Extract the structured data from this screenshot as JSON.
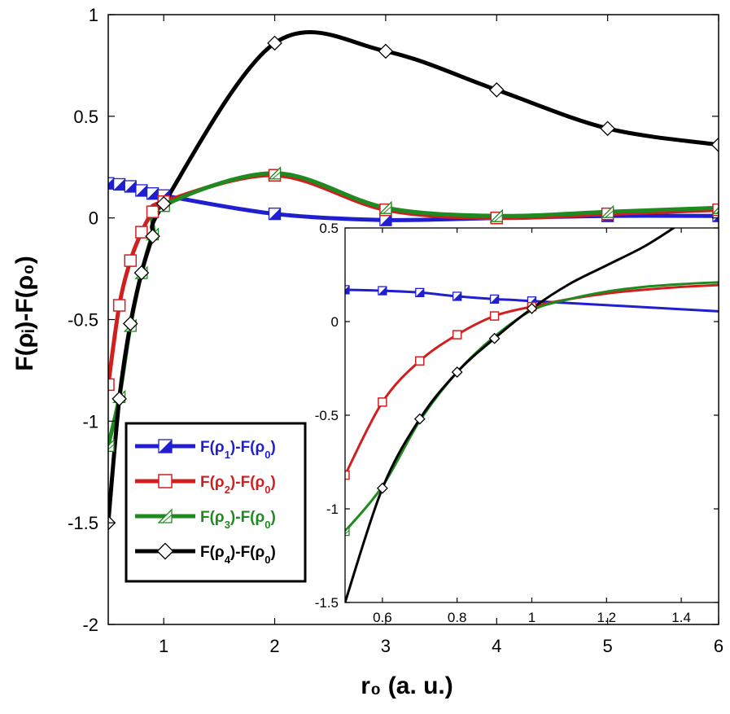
{
  "chart_data": [
    {
      "type": "line",
      "name": "main",
      "xlabel": "r₀ (a. u.)",
      "ylabel": "F(ρᵢ)-F(ρ₀)",
      "xlim": [
        0.5,
        6
      ],
      "ylim": [
        -2,
        1
      ],
      "xticks": [
        1,
        2,
        3,
        4,
        5,
        6
      ],
      "xtick_labels": [
        "1",
        "2",
        "3",
        "4",
        "5",
        "6"
      ],
      "yticks": [
        -2,
        -1.5,
        -1,
        -0.5,
        0,
        0.5,
        1
      ],
      "ytick_labels": [
        "-2",
        "-1.5",
        "-1",
        "-0.5",
        "0",
        "0.5",
        "1"
      ],
      "grid": false,
      "legend_position": "lower-left",
      "series": [
        {
          "name": "F(ρ1)-F(ρ0)",
          "label_base": "F(ρ",
          "label_sub": "1",
          "label_mid": ")-F(ρ",
          "label_sub2": "0",
          "label_end": ")",
          "color": "#1f1fd0",
          "marker": "half-filled-square",
          "x": [
            0.5,
            0.6,
            0.7,
            0.8,
            0.9,
            1.0,
            2,
            3,
            4,
            5,
            6
          ],
          "y": [
            0.17,
            0.165,
            0.155,
            0.135,
            0.12,
            0.11,
            0.02,
            -0.01,
            0.0,
            0.01,
            0.01
          ]
        },
        {
          "name": "F(ρ2)-F(ρ0)",
          "label_base": "F(ρ",
          "label_sub": "2",
          "label_mid": ")-F(ρ",
          "label_sub2": "0",
          "label_end": ")",
          "color": "#d01f1f",
          "marker": "open-square",
          "x": [
            0.5,
            0.6,
            0.7,
            0.8,
            0.9,
            1.0,
            2,
            3,
            4,
            5,
            6
          ],
          "y": [
            -0.82,
            -0.43,
            -0.21,
            -0.07,
            0.03,
            0.08,
            0.21,
            0.04,
            0.0,
            0.02,
            0.04
          ]
        },
        {
          "name": "F(ρ3)-F(ρ0)",
          "label_base": "F(ρ",
          "label_sub": "3",
          "label_mid": ")-F(ρ",
          "label_sub2": "0",
          "label_end": ")",
          "color": "#1f8a1f",
          "marker": "half-triangle",
          "x": [
            0.5,
            0.6,
            0.7,
            0.8,
            0.9,
            1.0,
            2,
            3,
            4,
            5,
            6
          ],
          "y": [
            -1.12,
            -0.88,
            -0.53,
            -0.27,
            -0.08,
            0.06,
            0.22,
            0.05,
            0.01,
            0.03,
            0.05
          ]
        },
        {
          "name": "F(ρ4)-F(ρ0)",
          "label_base": "F(ρ",
          "label_sub": "4",
          "label_mid": ")-F(ρ",
          "label_sub2": "0",
          "label_end": ")",
          "color": "#000000",
          "marker": "open-diamond",
          "x": [
            0.5,
            0.6,
            0.7,
            0.8,
            0.9,
            1.0,
            2,
            3,
            4,
            5,
            6
          ],
          "y": [
            -1.5,
            -0.89,
            -0.52,
            -0.27,
            -0.09,
            0.07,
            0.86,
            0.82,
            0.63,
            0.44,
            0.36
          ]
        }
      ]
    },
    {
      "type": "line",
      "name": "inset",
      "xlim": [
        0.5,
        1.5
      ],
      "ylim": [
        -1.5,
        0.5
      ],
      "xticks": [
        0.6,
        0.8,
        1.0,
        1.2,
        1.4
      ],
      "xtick_labels": [
        "0.6",
        "0.8",
        "1",
        "1.2",
        "1.4"
      ],
      "yticks": [
        -1.5,
        -1,
        -0.5,
        0,
        0.5
      ],
      "ytick_labels": [
        "-1.5",
        "-1",
        "-0.5",
        "0",
        "0.5"
      ],
      "grid": false,
      "series": [
        {
          "name": "F(ρ1)-F(ρ0)",
          "color": "#1f1fd0",
          "marker": "half-filled-square",
          "x": [
            0.5,
            0.6,
            0.7,
            0.8,
            0.9,
            1.0,
            1.5
          ],
          "y": [
            0.17,
            0.165,
            0.155,
            0.135,
            0.12,
            0.11,
            0.055
          ],
          "marker_x": [
            0.5,
            0.6,
            0.7,
            0.8,
            0.9,
            1.0
          ],
          "marker_y": [
            0.17,
            0.165,
            0.155,
            0.135,
            0.12,
            0.11
          ]
        },
        {
          "name": "F(ρ2)-F(ρ0)",
          "color": "#d01f1f",
          "marker": "open-square",
          "x": [
            0.5,
            0.6,
            0.7,
            0.8,
            0.9,
            1.0,
            1.1,
            1.2,
            1.3,
            1.4,
            1.5
          ],
          "y": [
            -0.82,
            -0.43,
            -0.21,
            -0.07,
            0.03,
            0.08,
            0.12,
            0.15,
            0.17,
            0.185,
            0.195
          ],
          "marker_x": [
            0.5,
            0.6,
            0.7,
            0.8,
            0.9,
            1.0
          ],
          "marker_y": [
            -0.82,
            -0.43,
            -0.21,
            -0.07,
            0.03,
            0.08
          ]
        },
        {
          "name": "F(ρ3)-F(ρ0)",
          "color": "#1f8a1f",
          "marker": "half-triangle",
          "x": [
            0.5,
            0.6,
            0.7,
            0.8,
            0.9,
            1.0,
            1.1,
            1.2,
            1.3,
            1.4,
            1.5
          ],
          "y": [
            -1.12,
            -0.88,
            -0.53,
            -0.27,
            -0.08,
            0.06,
            0.12,
            0.16,
            0.185,
            0.2,
            0.21
          ],
          "marker_x": [
            0.5
          ],
          "marker_y": [
            -1.12
          ]
        },
        {
          "name": "F(ρ4)-F(ρ0)",
          "color": "#000000",
          "marker": "open-diamond",
          "x": [
            0.5,
            0.6,
            0.7,
            0.8,
            0.9,
            1.0,
            1.1,
            1.2,
            1.3,
            1.38
          ],
          "y": [
            -1.5,
            -0.89,
            -0.52,
            -0.27,
            -0.09,
            0.07,
            0.2,
            0.3,
            0.4,
            0.5
          ],
          "marker_x": [
            0.6,
            0.7,
            0.8,
            0.9,
            1.0
          ],
          "marker_y": [
            -0.89,
            -0.52,
            -0.27,
            -0.09,
            0.07
          ]
        }
      ]
    }
  ]
}
